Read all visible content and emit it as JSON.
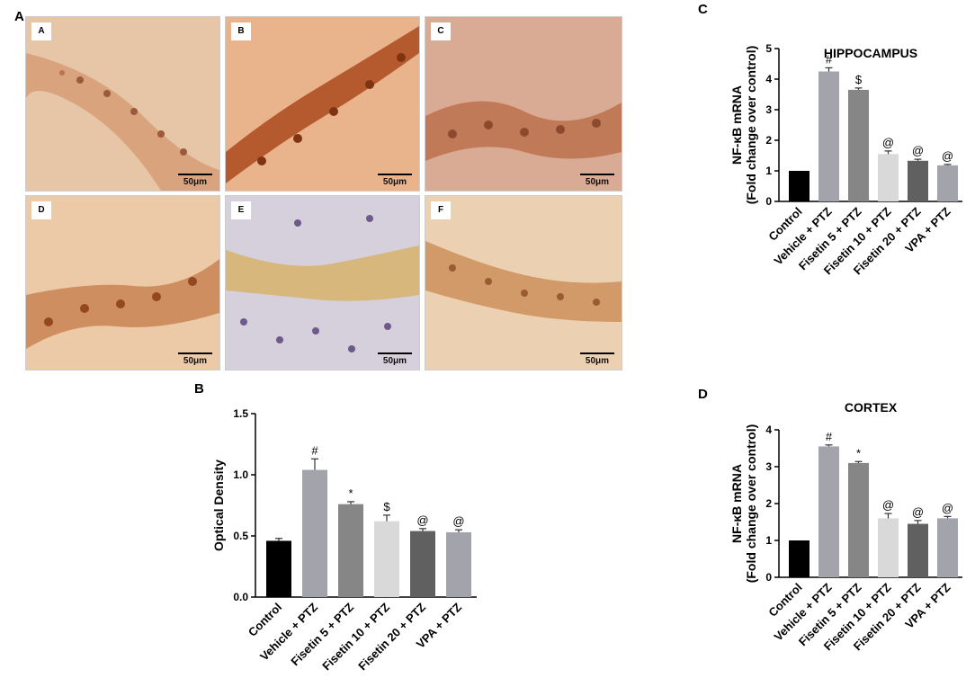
{
  "panels": {
    "A": "A",
    "B": "B",
    "C": "C",
    "D": "D"
  },
  "micrographs": [
    {
      "label": "A",
      "scale": "50μm",
      "tone": "light"
    },
    {
      "label": "B",
      "scale": "50μm",
      "tone": "dark"
    },
    {
      "label": "C",
      "scale": "50μm",
      "tone": "medium"
    },
    {
      "label": "D",
      "scale": "50μm",
      "tone": "medium"
    },
    {
      "label": "E",
      "scale": "50μm",
      "tone": "purple"
    },
    {
      "label": "F",
      "scale": "50μm",
      "tone": "light"
    }
  ],
  "chart_data": [
    {
      "panel": "B",
      "type": "bar",
      "title": "",
      "xlabel": "",
      "ylabel": "Optical Density",
      "categories": [
        "Control",
        "Vehicle + PTZ",
        "Fisetin 5 + PTZ",
        "Fisetin 10 + PTZ",
        "Fisetin 20 + PTZ",
        "VPA + PTZ"
      ],
      "values": [
        0.46,
        1.04,
        0.76,
        0.62,
        0.54,
        0.53
      ],
      "errors": [
        0.02,
        0.09,
        0.02,
        0.05,
        0.02,
        0.02
      ],
      "annotations": [
        "",
        "#",
        "*",
        "$",
        "@",
        "@"
      ],
      "colors": [
        "#000000",
        "#a3a3ab",
        "#868686",
        "#d9d9d9",
        "#606060",
        "#a3a3ab"
      ],
      "ylim": [
        0,
        1.5
      ],
      "yticks": [
        "0.0",
        "0.5",
        "1.0",
        "1.5"
      ]
    },
    {
      "panel": "C",
      "type": "bar",
      "title": "HIPPOCAMPUS",
      "xlabel": "",
      "ylabel": "NF-κB mRNA\n(Fold change over control)",
      "categories": [
        "Control",
        "Vehicle + PTZ",
        "Fisetin 5 + PTZ",
        "Fisetin 10 + PTZ",
        "Fisetin 20 + PTZ",
        "VPA + PTZ"
      ],
      "values": [
        1.0,
        4.25,
        3.65,
        1.55,
        1.33,
        1.18
      ],
      "errors": [
        0.0,
        0.12,
        0.06,
        0.1,
        0.05,
        0.03
      ],
      "annotations": [
        "",
        "#",
        "$",
        "@",
        "@",
        "@"
      ],
      "colors": [
        "#000000",
        "#a3a3ab",
        "#868686",
        "#d9d9d9",
        "#606060",
        "#a3a3ab"
      ],
      "ylim": [
        0,
        5
      ],
      "yticks": [
        "0",
        "1",
        "2",
        "3",
        "4",
        "5"
      ]
    },
    {
      "panel": "D",
      "type": "bar",
      "title": "CORTEX",
      "xlabel": "",
      "ylabel": "NF-κB mRNA\n(Fold change over control)",
      "categories": [
        "Control",
        "Vehicle + PTZ",
        "Fisetin 5 + PTZ",
        "Fisetin 10 + PTZ",
        "Fisetin 20 + PTZ",
        "VPA + PTZ"
      ],
      "values": [
        1.0,
        3.55,
        3.1,
        1.6,
        1.45,
        1.6
      ],
      "errors": [
        0.0,
        0.04,
        0.04,
        0.13,
        0.09,
        0.05
      ],
      "annotations": [
        "",
        "#",
        "*",
        "@",
        "@",
        "@"
      ],
      "colors": [
        "#000000",
        "#a3a3ab",
        "#868686",
        "#d9d9d9",
        "#606060",
        "#a3a3ab"
      ],
      "ylim": [
        0,
        4
      ],
      "yticks": [
        "0",
        "1",
        "2",
        "3",
        "4"
      ]
    }
  ]
}
